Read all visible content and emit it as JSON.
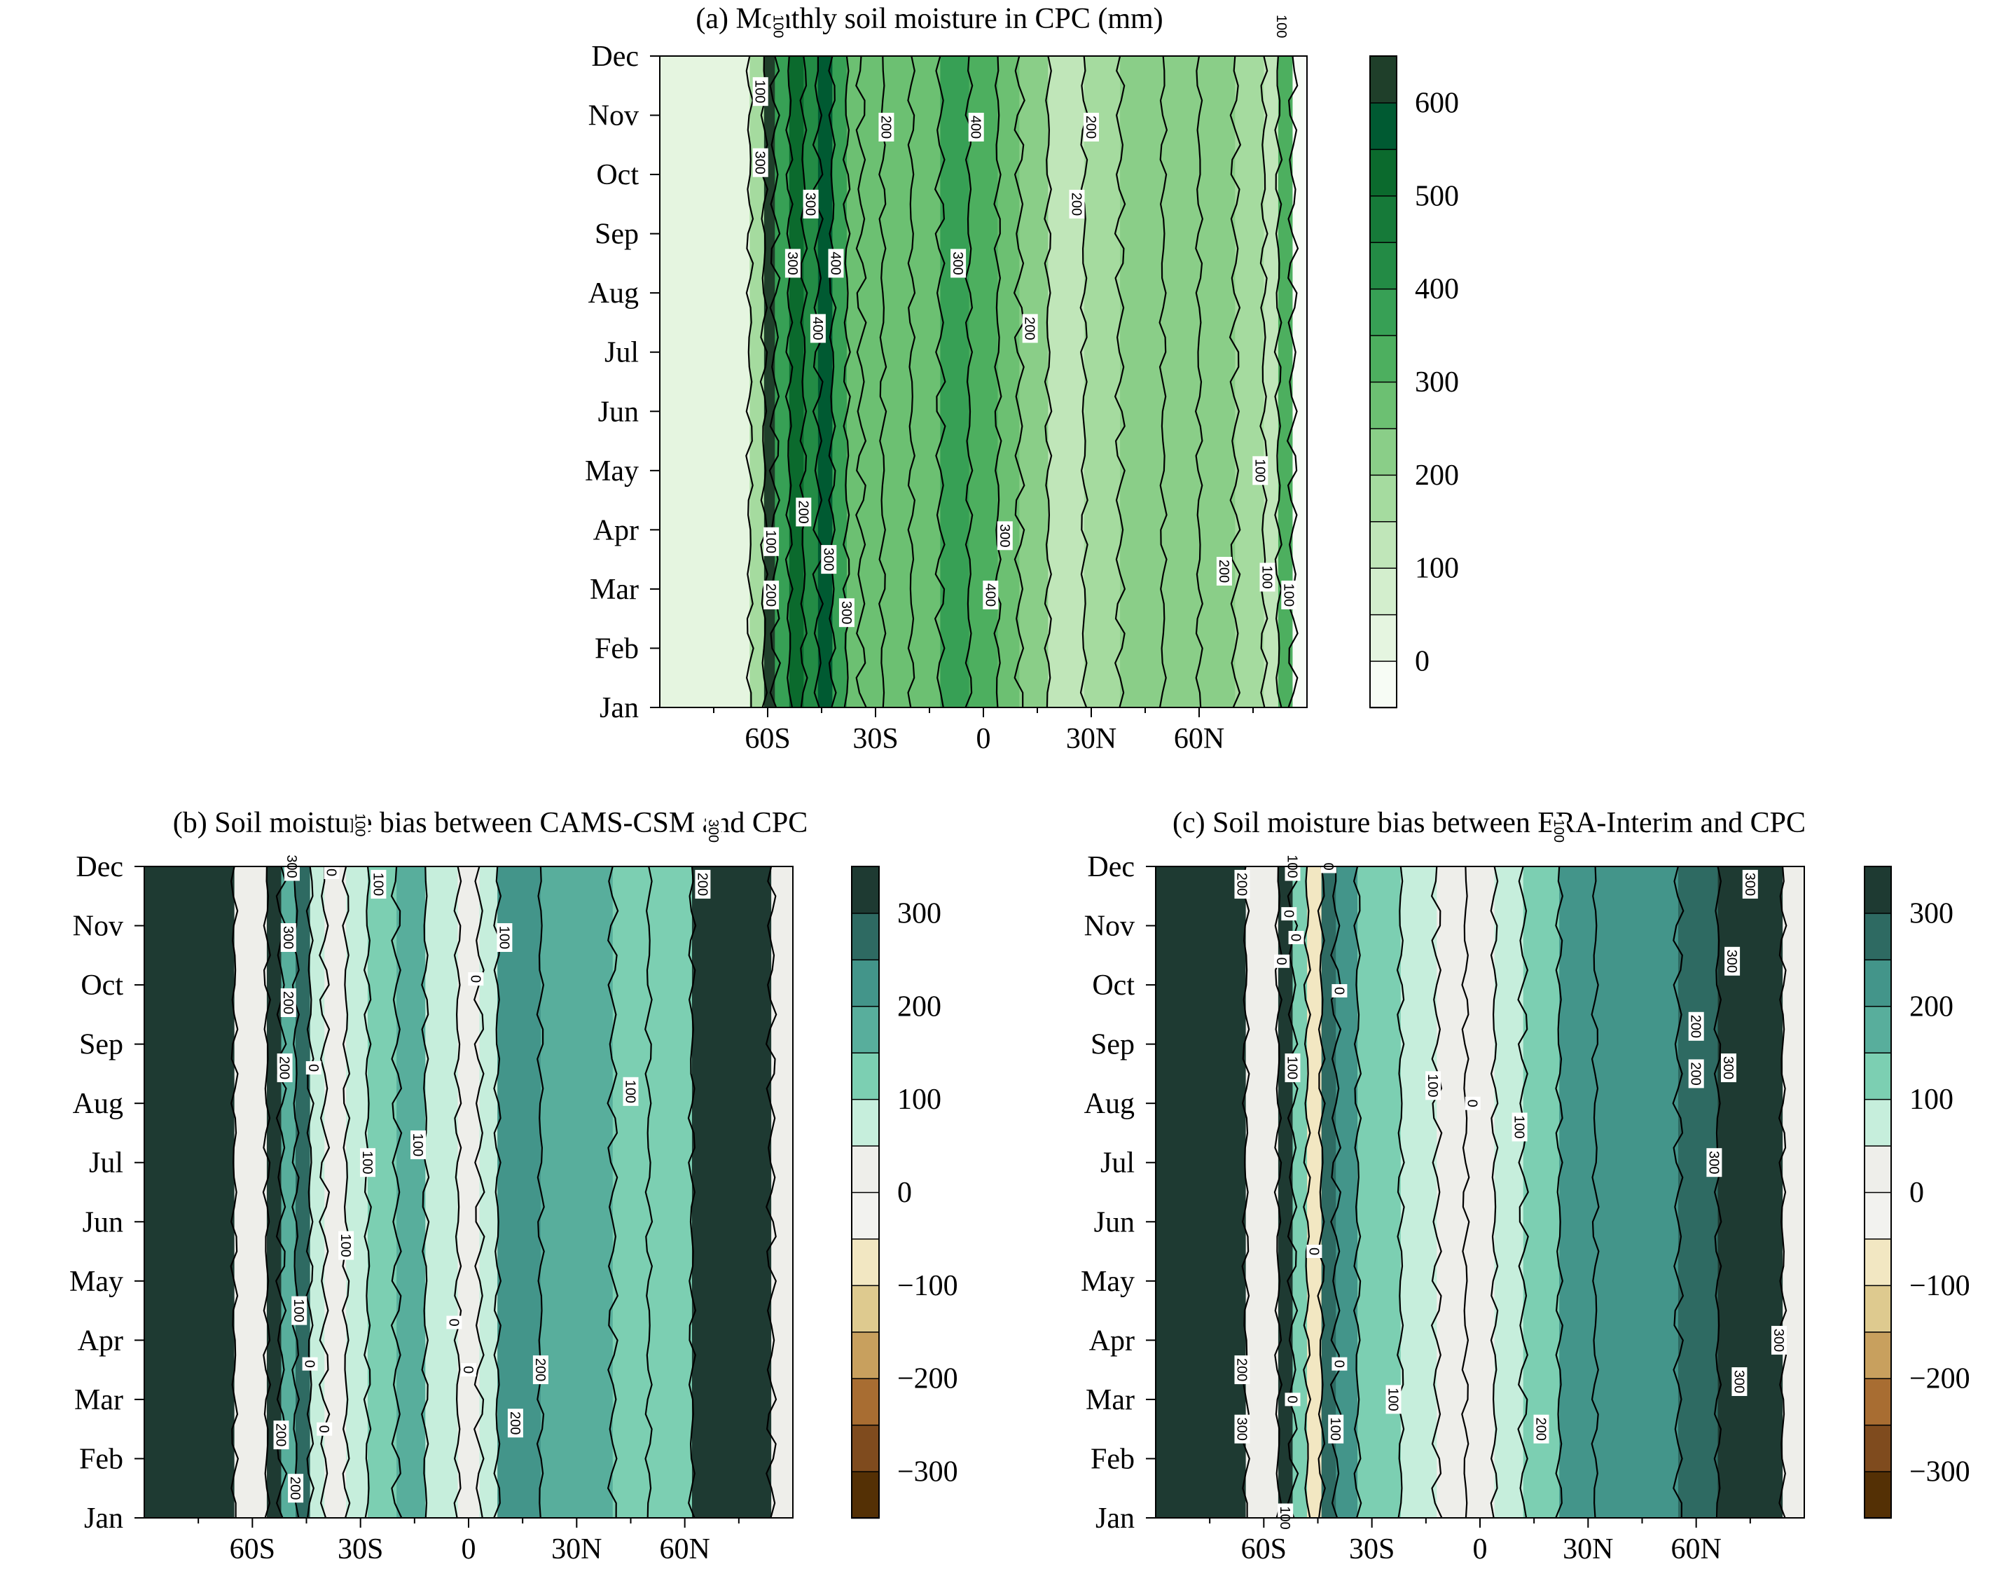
{
  "chart_data": [
    {
      "type": "heatmap",
      "title": "(a) Monthly soil moisture in CPC (mm)",
      "xlabel": "",
      "ylabel": "",
      "x_ticks": [
        "60S",
        "30S",
        "0",
        "30N",
        "60N"
      ],
      "x_tick_values": [
        -60,
        -30,
        0,
        30,
        60
      ],
      "xlim": [
        -90,
        90
      ],
      "y_ticks": [
        "Jan",
        "Feb",
        "Mar",
        "Apr",
        "May",
        "Jun",
        "Jul",
        "Aug",
        "Sep",
        "Oct",
        "Nov",
        "Dec"
      ],
      "colorbar": {
        "levels": [
          -50,
          0,
          50,
          100,
          150,
          200,
          250,
          300,
          350,
          400,
          450,
          500,
          550,
          600,
          650
        ],
        "tick_labels": [
          "0",
          "100",
          "200",
          "300",
          "400",
          "500",
          "600"
        ],
        "tick_values": [
          0,
          100,
          200,
          300,
          400,
          500,
          600
        ],
        "colors": [
          "#f7fcf5",
          "#e5f5e0",
          "#d3eecd",
          "#c0e6b9",
          "#a5db9f",
          "#8ace88",
          "#6cc072",
          "#4daf5f",
          "#37a055",
          "#238b45",
          "#167a39",
          "#0b6a2d",
          "#005a32",
          "#1f3f2a"
        ]
      },
      "bands": [
        {
          "x": [
            -90,
            -65
          ],
          "value": 10
        },
        {
          "x": [
            -65,
            -61
          ],
          "value": 180
        },
        {
          "x": [
            -61,
            -58
          ],
          "value": 620
        },
        {
          "x": [
            -58,
            -54
          ],
          "value": 380
        },
        {
          "x": [
            -54,
            -50
          ],
          "value": 520
        },
        {
          "x": [
            -50,
            -46
          ],
          "value": 430
        },
        {
          "x": [
            -46,
            -42
          ],
          "value": 560
        },
        {
          "x": [
            -42,
            -38
          ],
          "value": 350
        },
        {
          "x": [
            -38,
            -34
          ],
          "value": 270
        },
        {
          "x": [
            -34,
            -28
          ],
          "value": 250
        },
        {
          "x": [
            -28,
            -20
          ],
          "value": 260
        },
        {
          "x": [
            -20,
            -12
          ],
          "value": 290
        },
        {
          "x": [
            -12,
            -4
          ],
          "value": 360
        },
        {
          "x": [
            -4,
            4
          ],
          "value": 340
        },
        {
          "x": [
            4,
            10
          ],
          "value": 290
        },
        {
          "x": [
            10,
            18
          ],
          "value": 210
        },
        {
          "x": [
            18,
            28
          ],
          "value": 140
        },
        {
          "x": [
            28,
            38
          ],
          "value": 180
        },
        {
          "x": [
            38,
            50
          ],
          "value": 220
        },
        {
          "x": [
            50,
            60
          ],
          "value": 240
        },
        {
          "x": [
            60,
            70
          ],
          "value": 210
        },
        {
          "x": [
            70,
            78
          ],
          "value": 160
        },
        {
          "x": [
            78,
            82
          ],
          "value": 120
        },
        {
          "x": [
            82,
            86
          ],
          "value": 300
        },
        {
          "x": [
            86,
            90
          ],
          "value": -40
        }
      ],
      "contour_labels": [
        {
          "text": "100",
          "lat": -57,
          "month": 11.5
        },
        {
          "text": "100",
          "lat": -62,
          "month": 10.4
        },
        {
          "text": "300",
          "lat": -62,
          "month": 9.2
        },
        {
          "text": "300",
          "lat": -48,
          "month": 8.5
        },
        {
          "text": "300",
          "lat": -53,
          "month": 7.5
        },
        {
          "text": "400",
          "lat": -41,
          "month": 7.5
        },
        {
          "text": "200",
          "lat": -27,
          "month": 9.8
        },
        {
          "text": "400",
          "lat": -2,
          "month": 9.8
        },
        {
          "text": "300",
          "lat": -7,
          "month": 7.5
        },
        {
          "text": "200",
          "lat": 30,
          "month": 9.8
        },
        {
          "text": "200",
          "lat": 26,
          "month": 8.5
        },
        {
          "text": "100",
          "lat": 83,
          "month": 11.5
        },
        {
          "text": "400",
          "lat": -46,
          "month": 6.4
        },
        {
          "text": "200",
          "lat": 13,
          "month": 6.4
        },
        {
          "text": "100",
          "lat": 77,
          "month": 4.0
        },
        {
          "text": "200",
          "lat": -50,
          "month": 3.3
        },
        {
          "text": "100",
          "lat": -59,
          "month": 2.8
        },
        {
          "text": "300",
          "lat": -43,
          "month": 2.5
        },
        {
          "text": "300",
          "lat": 6,
          "month": 2.9
        },
        {
          "text": "200",
          "lat": -59,
          "month": 1.9
        },
        {
          "text": "300",
          "lat": -38,
          "month": 1.6
        },
        {
          "text": "200",
          "lat": 67,
          "month": 2.3
        },
        {
          "text": "100",
          "lat": 79,
          "month": 2.2
        },
        {
          "text": "400",
          "lat": 2,
          "month": 1.9
        },
        {
          "text": "100",
          "lat": 85,
          "month": 1.9
        }
      ]
    },
    {
      "type": "heatmap",
      "title": "(b) Soil moisture bias between CAMS-CSM and CPC",
      "xlabel": "",
      "ylabel": "",
      "x_ticks": [
        "60S",
        "30S",
        "0",
        "30N",
        "60N"
      ],
      "x_tick_values": [
        -60,
        -30,
        0,
        30,
        60
      ],
      "xlim": [
        -90,
        90
      ],
      "y_ticks": [
        "Jan",
        "Feb",
        "Mar",
        "Apr",
        "May",
        "Jun",
        "Jul",
        "Aug",
        "Sep",
        "Oct",
        "Nov",
        "Dec"
      ],
      "colorbar": {
        "levels": [
          -350,
          -300,
          -250,
          -200,
          -150,
          -100,
          -50,
          0,
          50,
          100,
          150,
          200,
          250,
          300,
          350
        ],
        "tick_labels": [
          "300",
          "200",
          "100",
          "0",
          "−100",
          "−200",
          "−300"
        ],
        "tick_values": [
          300,
          200,
          100,
          0,
          -100,
          -200,
          -300
        ],
        "colors": [
          "#543005",
          "#7f4b1e",
          "#a86d32",
          "#c8a05e",
          "#deca8f",
          "#f2e7c2",
          "#f2f2ef",
          "#eeeeea",
          "#c6eedc",
          "#7ccfb2",
          "#58ae9c",
          "#43958a",
          "#2e6a62",
          "#1e3a32"
        ]
      },
      "bands": [
        {
          "x": [
            -90,
            -65
          ],
          "value": 330
        },
        {
          "x": [
            -65,
            -56
          ],
          "value": 0
        },
        {
          "x": [
            -56,
            -52
          ],
          "value": 320
        },
        {
          "x": [
            -52,
            -48
          ],
          "value": 150
        },
        {
          "x": [
            -48,
            -44
          ],
          "value": 260
        },
        {
          "x": [
            -44,
            -40
          ],
          "value": 80
        },
        {
          "x": [
            -40,
            -34
          ],
          "value": 40
        },
        {
          "x": [
            -34,
            -28
          ],
          "value": 70
        },
        {
          "x": [
            -28,
            -20
          ],
          "value": 120
        },
        {
          "x": [
            -20,
            -12
          ],
          "value": 170
        },
        {
          "x": [
            -12,
            -3
          ],
          "value": 60
        },
        {
          "x": [
            -3,
            3
          ],
          "value": 10
        },
        {
          "x": [
            3,
            8
          ],
          "value": 80
        },
        {
          "x": [
            8,
            20
          ],
          "value": 210
        },
        {
          "x": [
            20,
            40
          ],
          "value": 190
        },
        {
          "x": [
            40,
            50
          ],
          "value": 130
        },
        {
          "x": [
            50,
            62
          ],
          "value": 140
        },
        {
          "x": [
            62,
            84
          ],
          "value": 330
        },
        {
          "x": [
            84,
            90
          ],
          "value": 0
        }
      ],
      "contour_labels": [
        {
          "text": "300",
          "lat": -49,
          "month": 11.0
        },
        {
          "text": "300",
          "lat": -50,
          "month": 9.8
        },
        {
          "text": "200",
          "lat": -50,
          "month": 8.7
        },
        {
          "text": "200",
          "lat": -51,
          "month": 7.6
        },
        {
          "text": "0",
          "lat": -43,
          "month": 7.6
        },
        {
          "text": "100",
          "lat": -30,
          "month": 11.7
        },
        {
          "text": "0",
          "lat": -38,
          "month": 10.9
        },
        {
          "text": "100",
          "lat": -25,
          "month": 10.7
        },
        {
          "text": "100",
          "lat": 10,
          "month": 9.8
        },
        {
          "text": "0",
          "lat": 2,
          "month": 9.1
        },
        {
          "text": "100",
          "lat": -28,
          "month": 6.0
        },
        {
          "text": "100",
          "lat": -14,
          "month": 6.3
        },
        {
          "text": "100",
          "lat": 45,
          "month": 7.2
        },
        {
          "text": "100",
          "lat": -34,
          "month": 4.6
        },
        {
          "text": "100",
          "lat": -47,
          "month": 3.5
        },
        {
          "text": "0",
          "lat": -44,
          "month": 2.6
        },
        {
          "text": "0",
          "lat": -4,
          "month": 3.3
        },
        {
          "text": "0",
          "lat": 0,
          "month": 2.5
        },
        {
          "text": "200",
          "lat": 20,
          "month": 2.5
        },
        {
          "text": "200",
          "lat": 13,
          "month": 1.6
        },
        {
          "text": "0",
          "lat": -40,
          "month": 1.5
        },
        {
          "text": "200",
          "lat": -52,
          "month": 1.4
        },
        {
          "text": "200",
          "lat": -48,
          "month": 0.5
        },
        {
          "text": "300",
          "lat": 68,
          "month": 11.6
        },
        {
          "text": "200",
          "lat": 65,
          "month": 10.7
        }
      ]
    },
    {
      "type": "heatmap",
      "title": "(c) Soil moisture bias between ERA-Interim and CPC",
      "xlabel": "",
      "ylabel": "",
      "x_ticks": [
        "60S",
        "30S",
        "0",
        "30N",
        "60N"
      ],
      "x_tick_values": [
        -60,
        -30,
        0,
        30,
        60
      ],
      "xlim": [
        -90,
        90
      ],
      "y_ticks": [
        "Jan",
        "Feb",
        "Mar",
        "Apr",
        "May",
        "Jun",
        "Jul",
        "Aug",
        "Sep",
        "Oct",
        "Nov",
        "Dec"
      ],
      "colorbar": {
        "levels": [
          -350,
          -300,
          -250,
          -200,
          -150,
          -100,
          -50,
          0,
          50,
          100,
          150,
          200,
          250,
          300,
          350
        ],
        "tick_labels": [
          "300",
          "200",
          "100",
          "0",
          "−100",
          "−200",
          "−300"
        ],
        "tick_values": [
          300,
          200,
          100,
          0,
          -100,
          -200,
          -300
        ],
        "colors": [
          "#543005",
          "#7f4b1e",
          "#a86d32",
          "#c8a05e",
          "#deca8f",
          "#f2e7c2",
          "#f2f2ef",
          "#eeeeea",
          "#c6eedc",
          "#7ccfb2",
          "#58ae9c",
          "#43958a",
          "#2e6a62",
          "#1e3a32"
        ]
      },
      "bands": [
        {
          "x": [
            -90,
            -65
          ],
          "value": 330
        },
        {
          "x": [
            -65,
            -56
          ],
          "value": 0
        },
        {
          "x": [
            -56,
            -52
          ],
          "value": 320
        },
        {
          "x": [
            -52,
            -48
          ],
          "value": 120
        },
        {
          "x": [
            -48,
            -44
          ],
          "value": -60
        },
        {
          "x": [
            -44,
            -40
          ],
          "value": 260
        },
        {
          "x": [
            -40,
            -34
          ],
          "value": 200
        },
        {
          "x": [
            -34,
            -22
          ],
          "value": 110
        },
        {
          "x": [
            -22,
            -12
          ],
          "value": 60
        },
        {
          "x": [
            -12,
            -4
          ],
          "value": 20
        },
        {
          "x": [
            -4,
            4
          ],
          "value": 0
        },
        {
          "x": [
            4,
            12
          ],
          "value": 80
        },
        {
          "x": [
            12,
            22
          ],
          "value": 140
        },
        {
          "x": [
            22,
            32
          ],
          "value": 220
        },
        {
          "x": [
            32,
            55
          ],
          "value": 200
        },
        {
          "x": [
            55,
            66
          ],
          "value": 260
        },
        {
          "x": [
            66,
            84
          ],
          "value": 330
        },
        {
          "x": [
            84,
            90
          ],
          "value": 0
        }
      ],
      "contour_labels": [
        {
          "text": "200",
          "lat": -66,
          "month": 10.7
        },
        {
          "text": "100",
          "lat": -52,
          "month": 11.0
        },
        {
          "text": "0",
          "lat": -42,
          "month": 11.0
        },
        {
          "text": "0",
          "lat": -53,
          "month": 10.2
        },
        {
          "text": "0",
          "lat": -51,
          "month": 9.8
        },
        {
          "text": "0",
          "lat": -55,
          "month": 9.4
        },
        {
          "text": "0",
          "lat": -39,
          "month": 8.9
        },
        {
          "text": "100",
          "lat": -52,
          "month": 7.6
        },
        {
          "text": "100",
          "lat": -13,
          "month": 7.3
        },
        {
          "text": "0",
          "lat": -2,
          "month": 7.0
        },
        {
          "text": "100",
          "lat": 11,
          "month": 6.6
        },
        {
          "text": "100",
          "lat": 22,
          "month": 11.6
        },
        {
          "text": "300",
          "lat": 75,
          "month": 10.7
        },
        {
          "text": "300",
          "lat": 70,
          "month": 9.4
        },
        {
          "text": "200",
          "lat": 60,
          "month": 8.3
        },
        {
          "text": "300",
          "lat": 69,
          "month": 7.6
        },
        {
          "text": "200",
          "lat": 60,
          "month": 7.5
        },
        {
          "text": "300",
          "lat": 65,
          "month": 6.0
        },
        {
          "text": "0",
          "lat": -46,
          "month": 4.5
        },
        {
          "text": "0",
          "lat": -39,
          "month": 2.6
        },
        {
          "text": "0",
          "lat": -52,
          "month": 2.0
        },
        {
          "text": "100",
          "lat": -40,
          "month": 1.5
        },
        {
          "text": "100",
          "lat": -24,
          "month": 2.0
        },
        {
          "text": "200",
          "lat": 17,
          "month": 1.5
        },
        {
          "text": "200",
          "lat": -66,
          "month": 2.5
        },
        {
          "text": "300",
          "lat": -66,
          "month": 1.5
        },
        {
          "text": "100",
          "lat": -54,
          "month": 0.0
        },
        {
          "text": "300",
          "lat": 72,
          "month": 2.3
        },
        {
          "text": "300",
          "lat": 83,
          "month": 3.0
        }
      ]
    }
  ]
}
